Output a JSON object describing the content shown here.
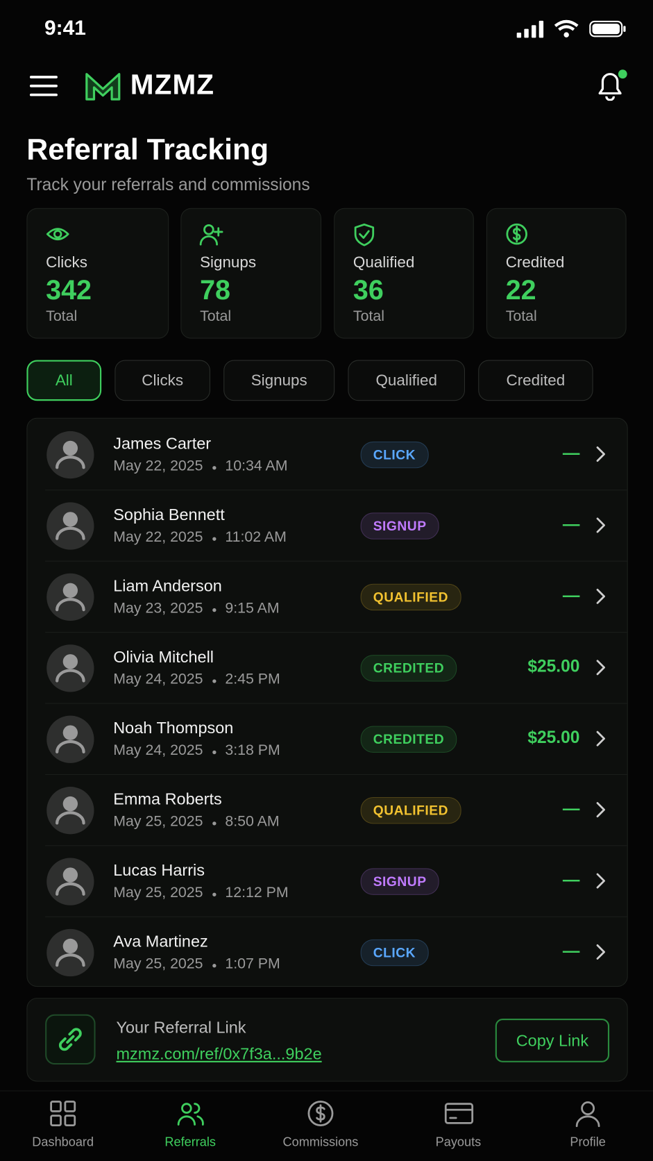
{
  "status_bar": {
    "time": "9:41"
  },
  "header": {
    "brand": "MZMZ"
  },
  "page": {
    "title": "Referral Tracking",
    "subtitle": "Track your referrals and commissions"
  },
  "stats": [
    {
      "label": "Clicks",
      "value": "342",
      "unit": "Total"
    },
    {
      "label": "Signups",
      "value": "78",
      "unit": "Total"
    },
    {
      "label": "Qualified",
      "value": "36",
      "unit": "Total"
    },
    {
      "label": "Credited",
      "value": "22",
      "unit": "Total"
    }
  ],
  "filters": {
    "items": [
      "All",
      "Clicks",
      "Signups",
      "Qualified",
      "Credited"
    ],
    "active": 0
  },
  "referrals": [
    {
      "name": "James Carter",
      "date": "May 22, 2025",
      "time": "10:34 AM",
      "status": "CLICK",
      "color": "#5aa8ff",
      "amount": "—"
    },
    {
      "name": "Sophia Bennett",
      "date": "May 22, 2025",
      "time": "11:02 AM",
      "status": "SIGNUP",
      "color": "#c07bff",
      "amount": "—"
    },
    {
      "name": "Liam Anderson",
      "date": "May 23, 2025",
      "time": "9:15 AM",
      "status": "QUALIFIED",
      "color": "#f2c230",
      "amount": "—"
    },
    {
      "name": "Olivia Mitchell",
      "date": "May 24, 2025",
      "time": "2:45 PM",
      "status": "CREDITED",
      "color": "#3fcf5e",
      "amount": "$25.00"
    },
    {
      "name": "Noah Thompson",
      "date": "May 24, 2025",
      "time": "3:18 PM",
      "status": "CREDITED",
      "color": "#3fcf5e",
      "amount": "$25.00"
    },
    {
      "name": "Emma Roberts",
      "date": "May 25, 2025",
      "time": "8:50 AM",
      "status": "QUALIFIED",
      "color": "#f2c230",
      "amount": "—"
    },
    {
      "name": "Lucas Harris",
      "date": "May 25, 2025",
      "time": "12:12 PM",
      "status": "SIGNUP",
      "color": "#c07bff",
      "amount": "—"
    },
    {
      "name": "Ava Martinez",
      "date": "May 25, 2025",
      "time": "1:07 PM",
      "status": "CLICK",
      "color": "#5aa8ff",
      "amount": "—"
    }
  ],
  "referral_link": {
    "label": "Your Referral Link",
    "url": "mzmz.com/ref/0x7f3a...9b2e",
    "button": "Copy Link"
  },
  "nav": {
    "items": [
      "Dashboard",
      "Referrals",
      "Commissions",
      "Payouts",
      "Profile"
    ],
    "active": 1
  }
}
